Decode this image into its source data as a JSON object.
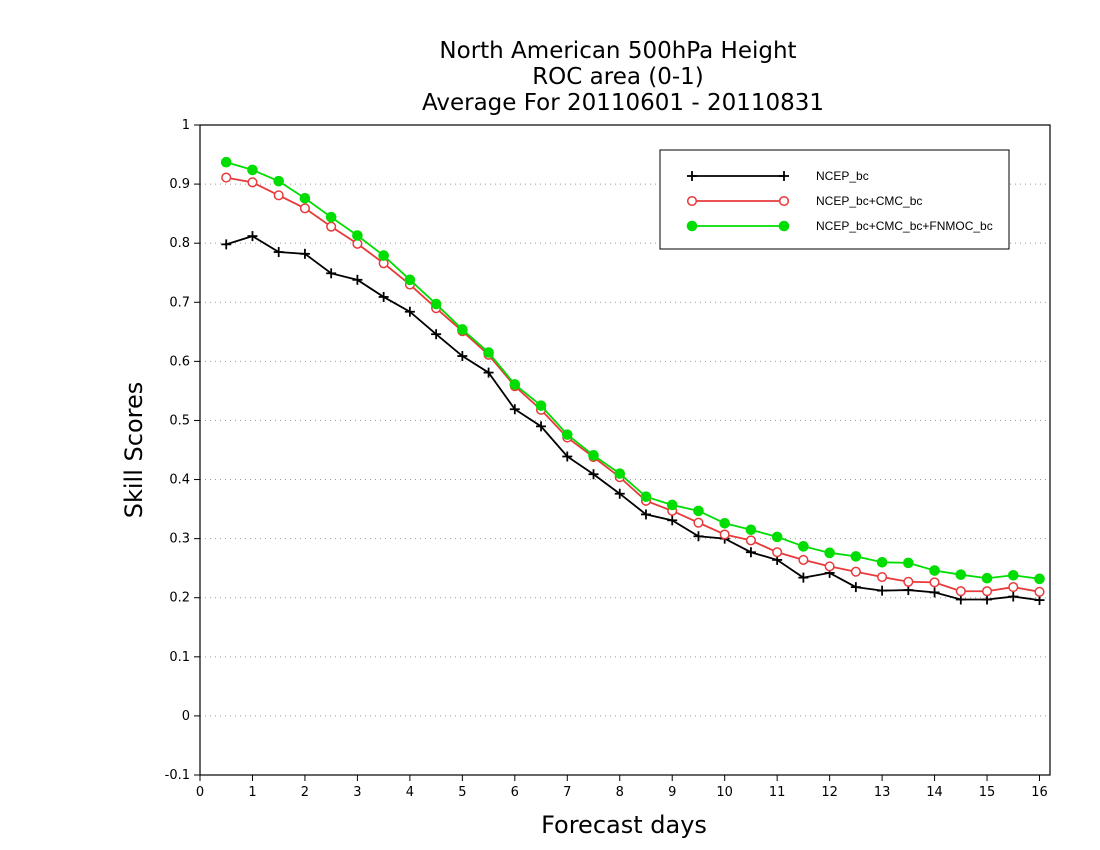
{
  "chart_data": {
    "type": "line",
    "title_lines": [
      "North American 500hPa Height",
      "ROC area (0-1)",
      "Average For 20110601 - 20110831"
    ],
    "xlabel": "Forecast days",
    "ylabel": "Skill Scores",
    "xlim": [
      0,
      16.2
    ],
    "ylim": [
      -0.1,
      1
    ],
    "xticks": [
      0,
      1,
      2,
      3,
      4,
      5,
      6,
      7,
      8,
      9,
      10,
      11,
      12,
      13,
      14,
      15,
      16
    ],
    "xtick_labels": [
      "0",
      "1",
      "2",
      "3",
      "4",
      "5",
      "6",
      "7",
      "8",
      "9",
      "10",
      "11",
      "12",
      "13",
      "14",
      "15",
      "16"
    ],
    "yticks": [
      -0.1,
      0,
      0.1,
      0.2,
      0.3,
      0.4,
      0.5,
      0.6,
      0.7,
      0.8,
      0.9,
      1
    ],
    "ytick_labels": [
      "-0.1",
      "0",
      "0.1",
      "0.2",
      "0.3",
      "0.4",
      "0.5",
      "0.6",
      "0.7",
      "0.8",
      "0.9",
      "1"
    ],
    "grid": "horizontal dotted",
    "legend_position": "top-right",
    "x": [
      0.5,
      1,
      1.5,
      2,
      2.5,
      3,
      3.5,
      4,
      4.5,
      5,
      5.5,
      6,
      6.5,
      7,
      7.5,
      8,
      8.5,
      9,
      9.5,
      10,
      10.5,
      11,
      11.5,
      12,
      12.5,
      13,
      13.5,
      14,
      14.5,
      15,
      15.5,
      16
    ],
    "series": [
      {
        "name": "NCEP_bc",
        "color": "#000000",
        "marker": "plus",
        "values": [
          0.798,
          0.812,
          0.785,
          0.782,
          0.749,
          0.738,
          0.709,
          0.684,
          0.646,
          0.609,
          0.581,
          0.519,
          0.49,
          0.439,
          0.409,
          0.376,
          0.341,
          0.331,
          0.304,
          0.3,
          0.277,
          0.264,
          0.234,
          0.242,
          0.218,
          0.212,
          0.213,
          0.209,
          0.197,
          0.197,
          0.202,
          0.196
        ]
      },
      {
        "name": "NCEP_bc+CMC_bc",
        "color": "#e8393b",
        "marker": "open-circle",
        "values": [
          0.911,
          0.903,
          0.881,
          0.859,
          0.828,
          0.799,
          0.766,
          0.73,
          0.69,
          0.651,
          0.611,
          0.558,
          0.518,
          0.471,
          0.438,
          0.404,
          0.364,
          0.347,
          0.327,
          0.307,
          0.297,
          0.277,
          0.264,
          0.253,
          0.244,
          0.235,
          0.227,
          0.226,
          0.211,
          0.211,
          0.218,
          0.21
        ]
      },
      {
        "name": "NCEP_bc+CMC_bc+FNMOC_bc",
        "color": "#00dd00",
        "marker": "filled-circle",
        "values": [
          0.937,
          0.924,
          0.905,
          0.876,
          0.844,
          0.813,
          0.779,
          0.738,
          0.697,
          0.654,
          0.615,
          0.561,
          0.525,
          0.476,
          0.441,
          0.41,
          0.371,
          0.357,
          0.347,
          0.326,
          0.315,
          0.303,
          0.287,
          0.276,
          0.27,
          0.26,
          0.259,
          0.246,
          0.239,
          0.233,
          0.238,
          0.232
        ]
      }
    ]
  }
}
